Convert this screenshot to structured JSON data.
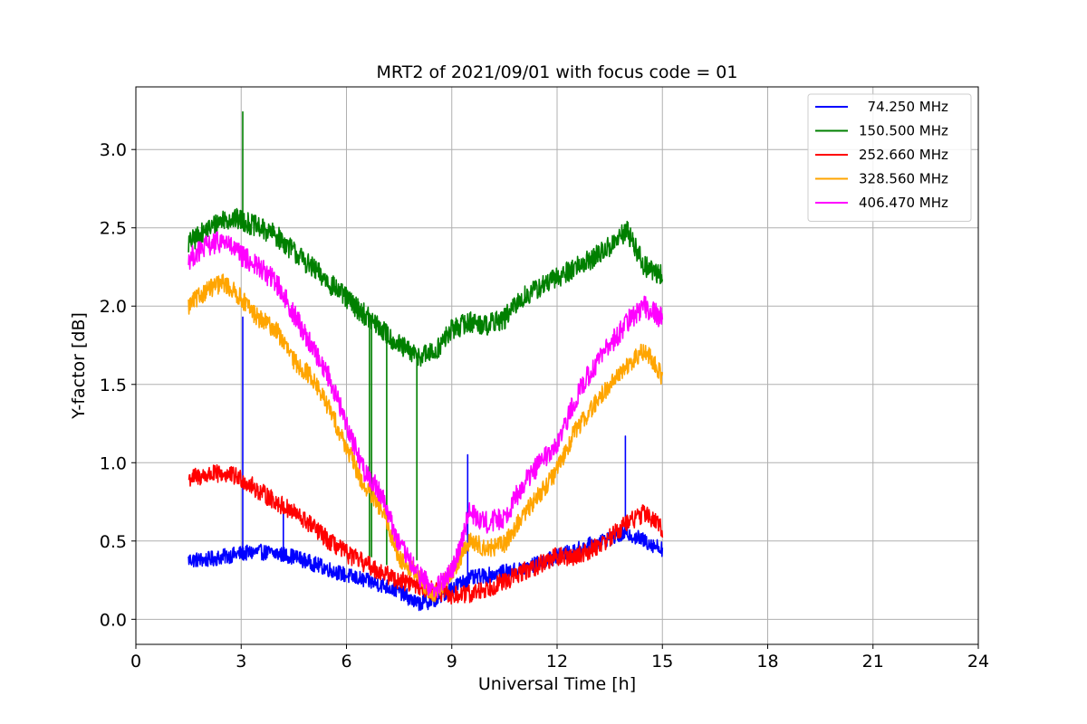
{
  "chart_data": {
    "type": "line",
    "title": "MRT2 of 2021/09/01 with focus code = 01",
    "xlabel": "Universal Time [h]",
    "ylabel": "Y-factor [dB]",
    "xlim": [
      0,
      24
    ],
    "ylim": [
      -0.16,
      3.4
    ],
    "xticks": [
      0,
      3,
      6,
      9,
      12,
      15,
      18,
      21,
      24
    ],
    "yticks": [
      0.0,
      0.5,
      1.0,
      1.5,
      2.0,
      2.5,
      3.0
    ],
    "xtick_labels": [
      "0",
      "3",
      "6",
      "9",
      "12",
      "15",
      "18",
      "21",
      "24"
    ],
    "ytick_labels": [
      "0.0",
      "0.5",
      "1.0",
      "1.5",
      "2.0",
      "2.5",
      "3.0"
    ],
    "grid": true,
    "legend_position": "top-right",
    "series": [
      {
        "name": "  74.250 MHz",
        "color": "#0000ff",
        "noise": 0.05,
        "x": [
          1.5,
          2.0,
          2.5,
          3.0,
          3.5,
          4.0,
          4.5,
          5.0,
          5.5,
          6.0,
          6.5,
          7.0,
          7.5,
          8.0,
          8.5,
          9.0,
          9.5,
          10.0,
          10.5,
          11.0,
          11.5,
          12.0,
          12.5,
          13.0,
          13.5,
          14.0,
          14.5,
          15.0
        ],
        "y": [
          0.38,
          0.38,
          0.4,
          0.42,
          0.43,
          0.42,
          0.4,
          0.36,
          0.32,
          0.28,
          0.25,
          0.22,
          0.18,
          0.1,
          0.12,
          0.2,
          0.26,
          0.28,
          0.3,
          0.32,
          0.36,
          0.4,
          0.44,
          0.48,
          0.52,
          0.55,
          0.5,
          0.45
        ],
        "spikes": [
          [
            3.05,
            1.93
          ],
          [
            9.45,
            1.05
          ],
          [
            13.95,
            1.17
          ],
          [
            4.2,
            0.68
          ]
        ]
      },
      {
        "name": "150.500 MHz",
        "color": "#008000",
        "noise": 0.07,
        "x": [
          1.5,
          2.0,
          2.5,
          3.0,
          3.5,
          4.0,
          4.5,
          5.0,
          5.5,
          6.0,
          6.5,
          7.0,
          7.5,
          8.0,
          8.5,
          9.0,
          9.5,
          10.0,
          10.5,
          11.0,
          11.5,
          12.0,
          12.5,
          13.0,
          13.5,
          14.0,
          14.5,
          15.0
        ],
        "y": [
          2.4,
          2.48,
          2.56,
          2.55,
          2.5,
          2.45,
          2.35,
          2.25,
          2.15,
          2.05,
          1.95,
          1.85,
          1.75,
          1.68,
          1.7,
          1.85,
          1.9,
          1.88,
          1.92,
          2.05,
          2.12,
          2.18,
          2.25,
          2.3,
          2.38,
          2.48,
          2.25,
          2.2
        ],
        "spikes": [
          [
            3.05,
            3.24
          ],
          [
            6.65,
            0.38
          ],
          [
            6.72,
            0.4
          ],
          [
            7.15,
            0.35
          ],
          [
            8.0,
            0.38
          ]
        ]
      },
      {
        "name": "252.660 MHz",
        "color": "#ff0000",
        "noise": 0.06,
        "x": [
          1.5,
          2.0,
          2.5,
          3.0,
          3.5,
          4.0,
          4.5,
          5.0,
          5.5,
          6.0,
          6.5,
          7.0,
          7.5,
          8.0,
          8.5,
          9.0,
          9.5,
          10.0,
          10.5,
          11.0,
          11.5,
          12.0,
          12.5,
          13.0,
          13.5,
          14.0,
          14.5,
          15.0
        ],
        "y": [
          0.9,
          0.92,
          0.93,
          0.9,
          0.82,
          0.75,
          0.68,
          0.6,
          0.5,
          0.42,
          0.36,
          0.3,
          0.25,
          0.22,
          0.18,
          0.15,
          0.16,
          0.2,
          0.24,
          0.3,
          0.35,
          0.4,
          0.4,
          0.45,
          0.52,
          0.62,
          0.68,
          0.58
        ],
        "spikes": []
      },
      {
        "name": "328.560 MHz",
        "color": "#ffa500",
        "noise": 0.06,
        "x": [
          1.5,
          2.0,
          2.5,
          3.0,
          3.5,
          4.0,
          4.5,
          5.0,
          5.5,
          6.0,
          6.5,
          7.0,
          7.5,
          8.0,
          8.5,
          9.0,
          9.5,
          10.0,
          10.5,
          11.0,
          11.5,
          12.0,
          12.5,
          13.0,
          13.5,
          14.0,
          14.5,
          15.0
        ],
        "y": [
          2.0,
          2.1,
          2.15,
          2.05,
          1.92,
          1.85,
          1.65,
          1.55,
          1.35,
          1.1,
          0.85,
          0.7,
          0.4,
          0.28,
          0.15,
          0.3,
          0.5,
          0.45,
          0.48,
          0.65,
          0.8,
          0.95,
          1.2,
          1.35,
          1.5,
          1.62,
          1.72,
          1.55
        ],
        "spikes": []
      },
      {
        "name": "406.470 MHz",
        "color": "#ff00ff",
        "noise": 0.07,
        "x": [
          1.5,
          2.0,
          2.5,
          3.0,
          3.5,
          4.0,
          4.5,
          5.0,
          5.5,
          6.0,
          6.5,
          7.0,
          7.5,
          8.0,
          8.5,
          9.0,
          9.5,
          10.0,
          10.5,
          11.0,
          11.5,
          12.0,
          12.5,
          13.0,
          13.5,
          14.0,
          14.5,
          15.0
        ],
        "y": [
          2.3,
          2.38,
          2.42,
          2.32,
          2.25,
          2.15,
          1.95,
          1.75,
          1.55,
          1.25,
          0.95,
          0.8,
          0.48,
          0.3,
          0.18,
          0.3,
          0.68,
          0.62,
          0.65,
          0.85,
          1.0,
          1.1,
          1.4,
          1.6,
          1.75,
          1.9,
          2.0,
          1.92
        ],
        "spikes": []
      }
    ]
  }
}
